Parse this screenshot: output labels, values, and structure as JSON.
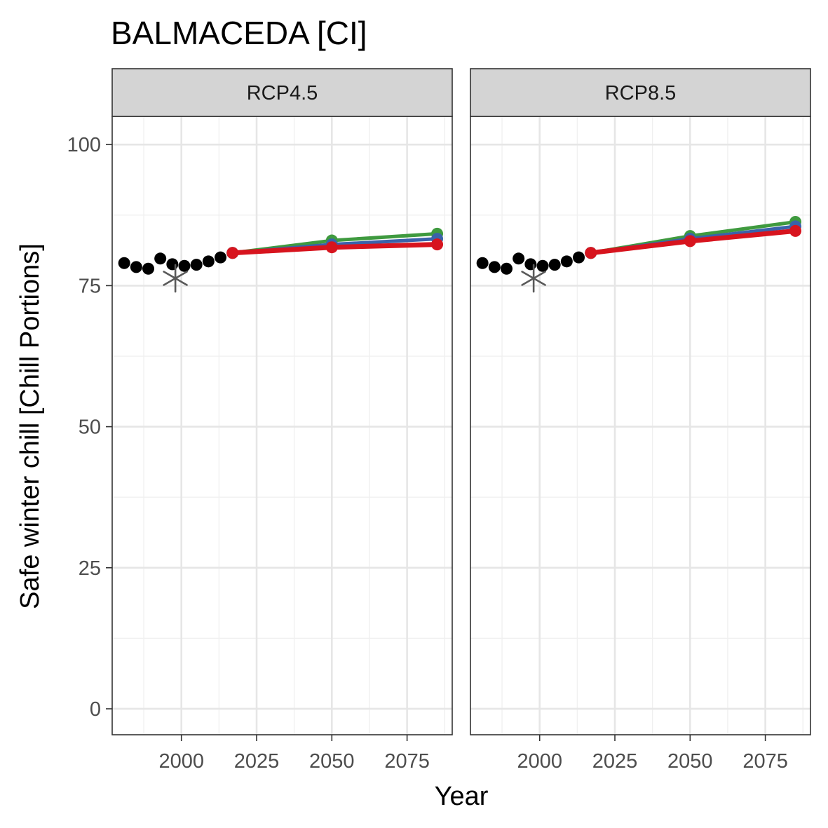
{
  "chart_data": {
    "type": "line",
    "title": "BALMACEDA [CI]",
    "xlabel": "Year",
    "ylabel": "Safe winter chill [Chill Portions]",
    "xlim": [
      1977,
      2090
    ],
    "ylim": [
      -4.6,
      105
    ],
    "x_ticks": [
      2000,
      2025,
      2050,
      2075
    ],
    "x_tick_labels": [
      "2000",
      "2025",
      "2050",
      "2075"
    ],
    "x_minor_ticks": [
      1987.5,
      2012.5,
      2037.5,
      2062.5,
      2087.5
    ],
    "y_ticks": [
      0,
      25,
      50,
      75,
      100
    ],
    "y_tick_labels": [
      "0",
      "25",
      "50",
      "75",
      "100"
    ],
    "y_minor_ticks": [
      12.5,
      37.5,
      62.5,
      87.5
    ],
    "grid": true,
    "legend": "none",
    "colors": {
      "historic": "#000000",
      "observed": "#595959",
      "series_green": "#3f9a3f",
      "series_blue": "#3a62aa",
      "series_red": "#d7141e",
      "grid_major": "#e6e6e6",
      "grid_minor": "#f0f0f0",
      "strip_fill": "#d4d4d4",
      "border": "#333333"
    },
    "panels": [
      {
        "label": "RCP4.5",
        "historic": {
          "x": [
            1981,
            1985,
            1989,
            1993,
            1997,
            2001,
            2005,
            2009,
            2013
          ],
          "y": [
            79.0,
            78.3,
            78.0,
            79.8,
            78.8,
            78.5,
            78.7,
            79.3,
            80.0
          ]
        },
        "observed": {
          "x": 1998,
          "y": 76.3
        },
        "series": [
          {
            "color": "#3f9a3f",
            "x": [
              2017,
              2050,
              2085
            ],
            "y": [
              80.8,
              83.0,
              84.2
            ]
          },
          {
            "color": "#3a62aa",
            "x": [
              2017,
              2050,
              2085
            ],
            "y": [
              80.8,
              82.3,
              83.3
            ]
          },
          {
            "color": "#d7141e",
            "x": [
              2017,
              2050,
              2085
            ],
            "y": [
              80.8,
              81.8,
              82.3
            ]
          }
        ]
      },
      {
        "label": "RCP8.5",
        "historic": {
          "x": [
            1981,
            1985,
            1989,
            1993,
            1997,
            2001,
            2005,
            2009,
            2013
          ],
          "y": [
            79.0,
            78.3,
            78.0,
            79.8,
            78.8,
            78.5,
            78.7,
            79.3,
            80.0
          ]
        },
        "observed": {
          "x": 1998,
          "y": 76.3
        },
        "series": [
          {
            "color": "#3f9a3f",
            "x": [
              2017,
              2050,
              2085
            ],
            "y": [
              80.8,
              83.8,
              86.3
            ]
          },
          {
            "color": "#3a62aa",
            "x": [
              2017,
              2050,
              2085
            ],
            "y": [
              80.8,
              83.3,
              85.5
            ]
          },
          {
            "color": "#d7141e",
            "x": [
              2017,
              2050,
              2085
            ],
            "y": [
              80.8,
              82.9,
              84.7
            ]
          }
        ]
      }
    ]
  }
}
